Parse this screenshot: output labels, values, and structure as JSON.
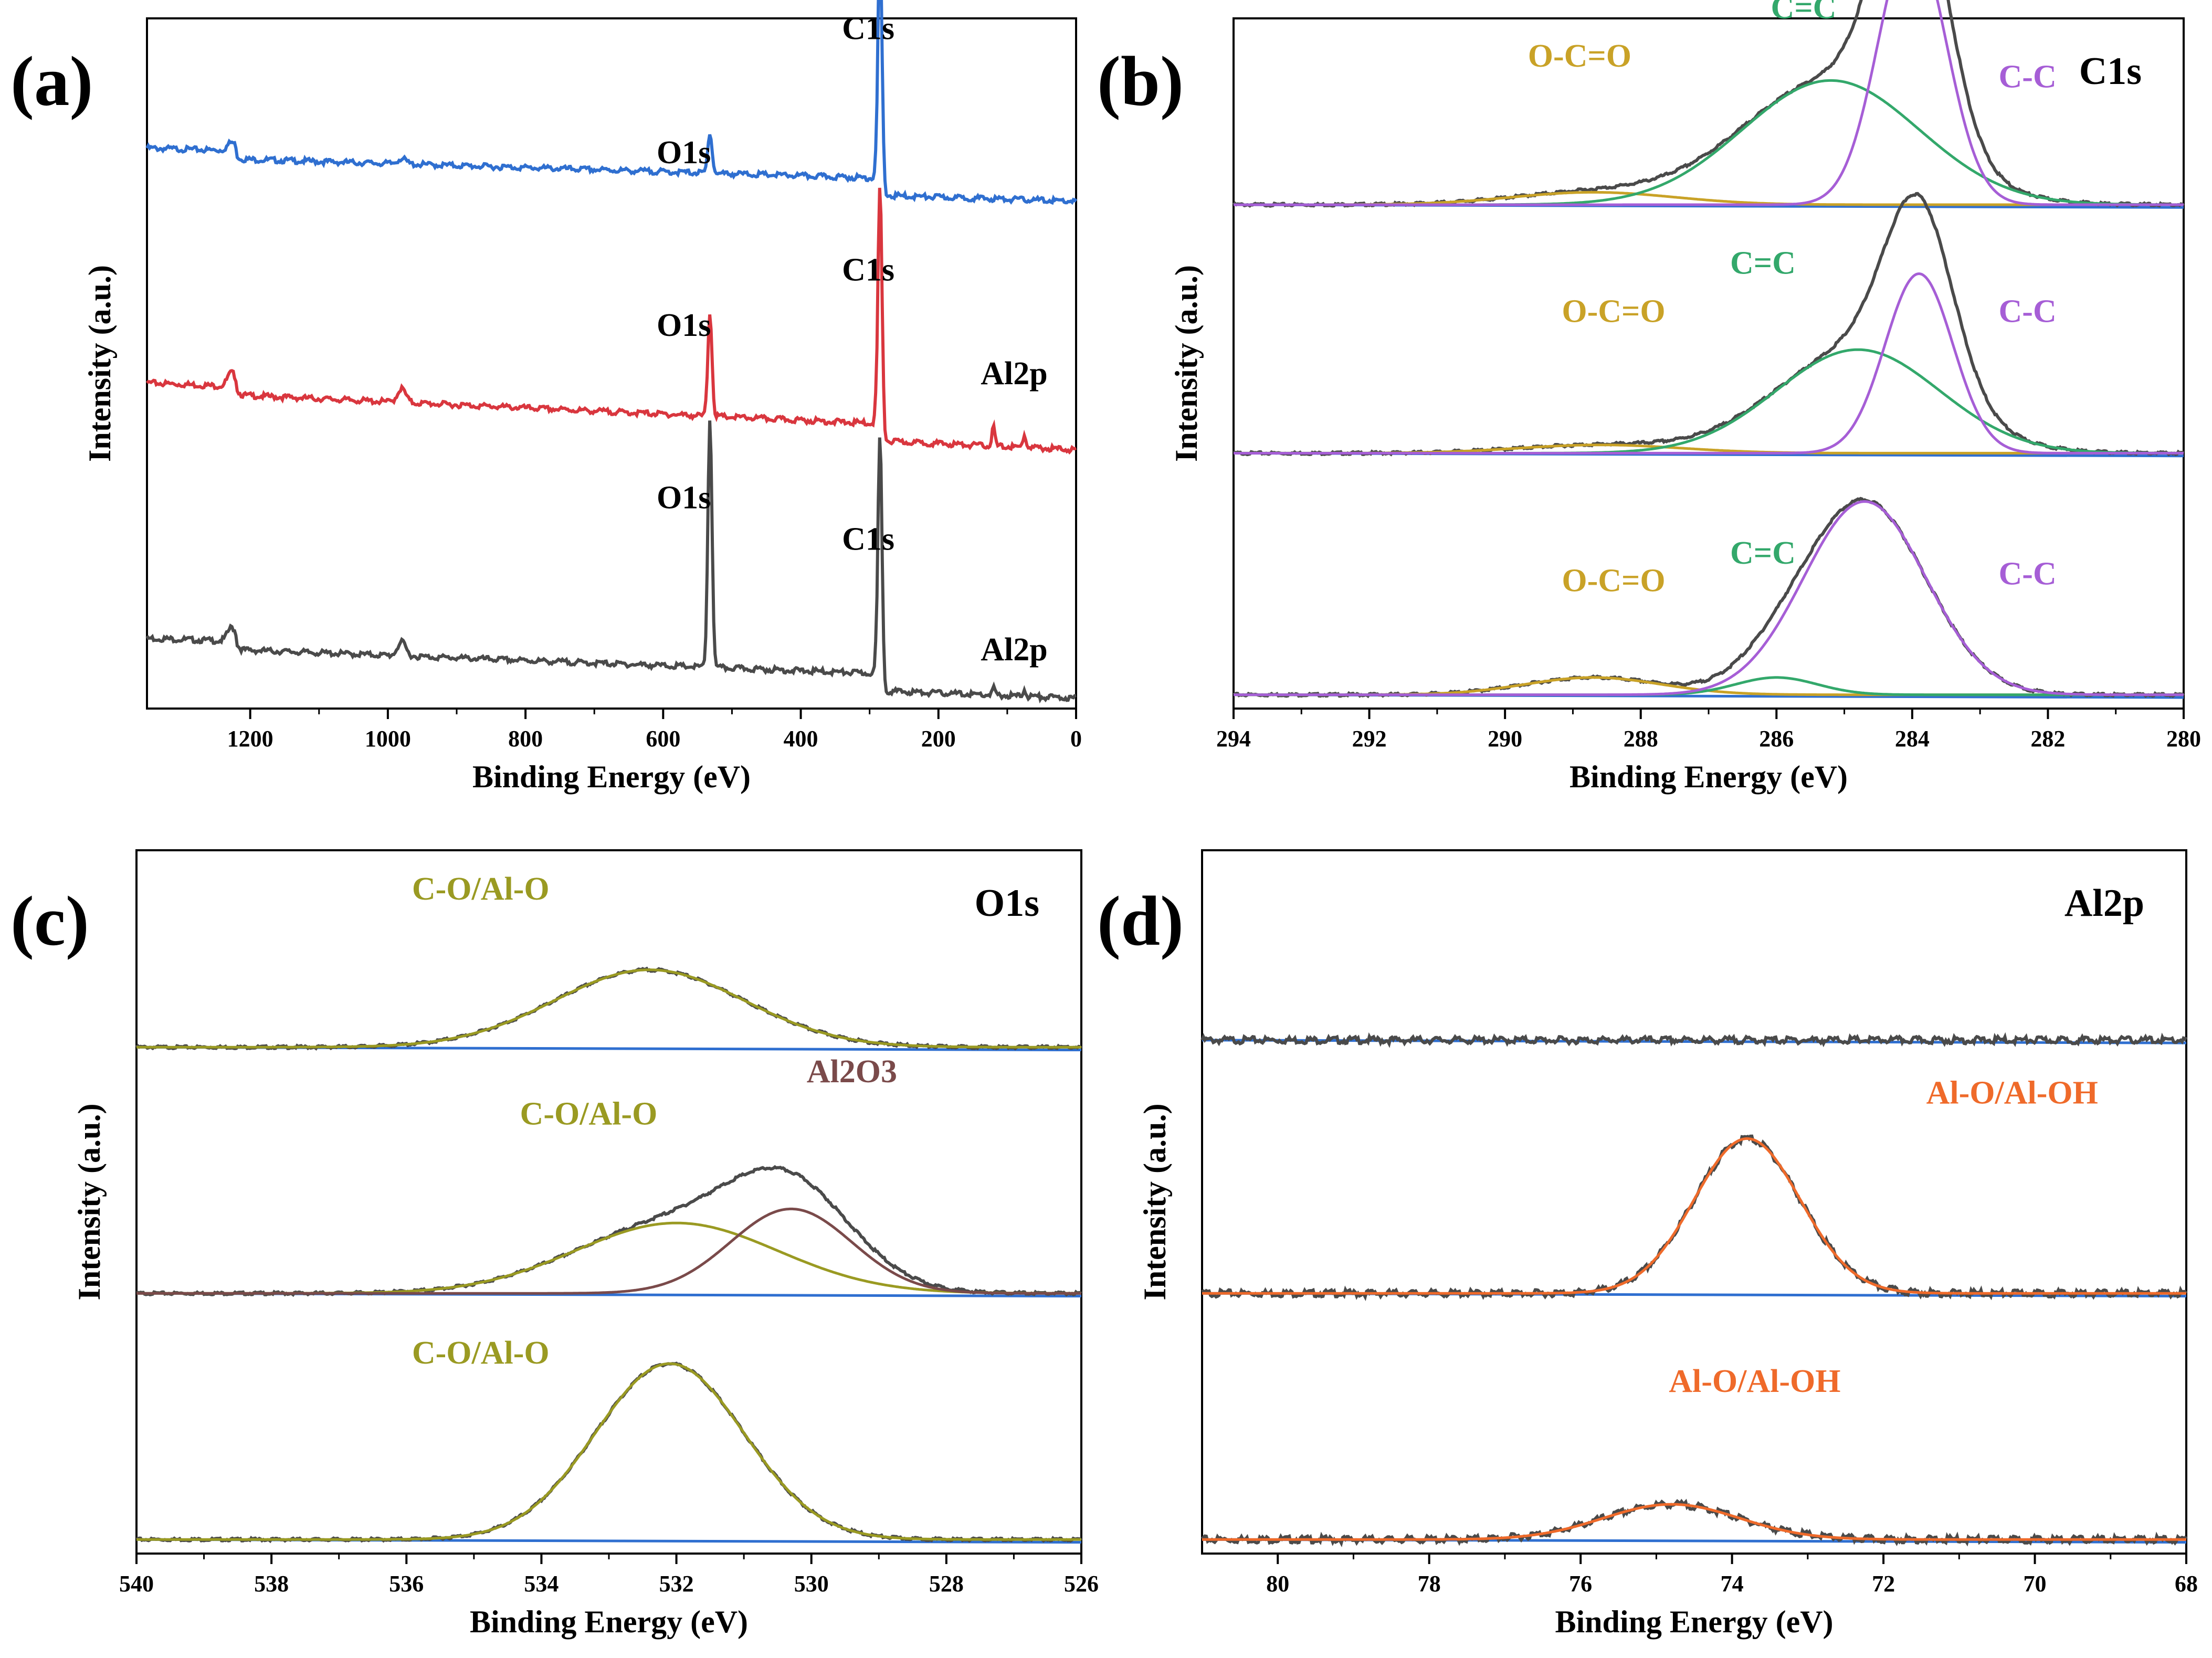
{
  "figure": {
    "colors": {
      "gray": "#4a4a4a",
      "blue": "#2f6fd0",
      "red": "#d9363e",
      "baseline": "#2f6fd0",
      "gold": "#c9a227",
      "green": "#33a86b",
      "purple": "#a65ed6",
      "olive": "#9a9a22",
      "brown": "#7a4a4a",
      "orange": "#ef6a2a"
    }
  },
  "chart_data": [
    {
      "id": "a",
      "panel_label": "(a)",
      "type": "line",
      "title": "",
      "xlabel": "Binding Energy (eV)",
      "ylabel": "Intensity (a.u.)",
      "xlim": [
        1350,
        0
      ],
      "xticks": [
        "1200",
        "1000",
        "800",
        "600",
        "400",
        "200",
        "0"
      ],
      "xtick_values": [
        1200,
        1000,
        800,
        600,
        400,
        200,
        0
      ],
      "series": [
        {
          "name": "top",
          "color": "blue",
          "offset": 0.76,
          "peaks": [
            [
              1227,
              0.012,
              6
            ],
            [
              980,
              0.008,
              6
            ],
            [
              532,
              0.06,
              3
            ],
            [
              285,
              0.37,
              3
            ]
          ],
          "slope": 0.04
        },
        {
          "name": "middle",
          "color": "red",
          "offset": 0.4,
          "peaks": [
            [
              1227,
              0.02,
              6
            ],
            [
              980,
              0.02,
              6
            ],
            [
              532,
              0.15,
              3
            ],
            [
              285,
              0.37,
              3
            ],
            [
              120,
              0.03,
              2
            ],
            [
              75,
              0.02,
              2
            ]
          ],
          "slope": 0.06
        },
        {
          "name": "bottom",
          "color": "gray",
          "offset": 0.04,
          "peaks": [
            [
              1227,
              0.02,
              6
            ],
            [
              980,
              0.02,
              6
            ],
            [
              532,
              0.36,
              3
            ],
            [
              285,
              0.37,
              3
            ],
            [
              120,
              0.01,
              2
            ],
            [
              75,
              0.01,
              2
            ]
          ],
          "slope": 0.05
        }
      ],
      "annotations": [
        {
          "text": "C1s",
          "x": 302,
          "y": 0.97,
          "color": "black"
        },
        {
          "text": "O1s",
          "x": 570,
          "y": 0.79,
          "color": "black"
        },
        {
          "text": "O1s",
          "x": 570,
          "y": 0.54,
          "color": "black"
        },
        {
          "text": "C1s",
          "x": 302,
          "y": 0.62,
          "color": "black"
        },
        {
          "text": "Al2p",
          "x": 90,
          "y": 0.47,
          "color": "black"
        },
        {
          "text": "O1s",
          "x": 570,
          "y": 0.29,
          "color": "black"
        },
        {
          "text": "C1s",
          "x": 302,
          "y": 0.23,
          "color": "black"
        },
        {
          "text": "Al2p",
          "x": 90,
          "y": 0.07,
          "color": "black"
        }
      ]
    },
    {
      "id": "b",
      "panel_label": "(b)",
      "corner_label": "C1s",
      "type": "line",
      "xlabel": "Binding Energy (eV)",
      "ylabel": "Intensity (a.u.)",
      "xlim": [
        294,
        280
      ],
      "xticks": [
        "294",
        "292",
        "290",
        "288",
        "286",
        "284",
        "282",
        "280"
      ],
      "xtick_values": [
        294,
        292,
        290,
        288,
        286,
        284,
        282,
        280
      ],
      "stacks": [
        {
          "offset": 0.73,
          "components": [
            {
              "name": "O-C=O",
              "color": "gold",
              "center": 288.7,
              "height": 0.018,
              "width": 1.2
            },
            {
              "name": "C=C",
              "color": "green",
              "center": 285.2,
              "height": 0.18,
              "width": 1.3
            },
            {
              "name": "C-C",
              "color": "purple",
              "center": 284.0,
              "height": 0.39,
              "width": 0.5
            }
          ]
        },
        {
          "offset": 0.37,
          "components": [
            {
              "name": "O-C=O",
              "color": "gold",
              "center": 288.6,
              "height": 0.012,
              "width": 1.2
            },
            {
              "name": "C=C",
              "color": "green",
              "center": 284.8,
              "height": 0.15,
              "width": 1.2
            },
            {
              "name": "C-C",
              "color": "purple",
              "center": 283.9,
              "height": 0.26,
              "width": 0.5
            }
          ]
        },
        {
          "offset": 0.02,
          "components": [
            {
              "name": "O-C=O",
              "color": "gold",
              "center": 288.7,
              "height": 0.025,
              "width": 1.0
            },
            {
              "name": "C=C",
              "color": "green",
              "center": 286.0,
              "height": 0.025,
              "width": 0.6
            },
            {
              "name": "C-C",
              "color": "purple",
              "center": 284.7,
              "height": 0.28,
              "width": 0.9
            }
          ]
        }
      ],
      "annotations": [
        {
          "text": "O-C=O",
          "x": 288.9,
          "y": 0.93,
          "color": "gold"
        },
        {
          "text": "C=C",
          "x": 285.6,
          "y": 1.0,
          "color": "green"
        },
        {
          "text": "C-C",
          "x": 282.3,
          "y": 0.9,
          "color": "purple"
        },
        {
          "text": "O-C=O",
          "x": 288.4,
          "y": 0.56,
          "color": "gold"
        },
        {
          "text": "C=C",
          "x": 286.2,
          "y": 0.63,
          "color": "green"
        },
        {
          "text": "C-C",
          "x": 282.3,
          "y": 0.56,
          "color": "purple"
        },
        {
          "text": "O-C=O",
          "x": 288.4,
          "y": 0.17,
          "color": "gold"
        },
        {
          "text": "C=C",
          "x": 286.2,
          "y": 0.21,
          "color": "green"
        },
        {
          "text": "C-C",
          "x": 282.3,
          "y": 0.18,
          "color": "purple"
        }
      ]
    },
    {
      "id": "c",
      "panel_label": "(c)",
      "corner_label": "O1s",
      "type": "line",
      "xlabel": "Binding Energy (eV)",
      "ylabel": "Intensity (a.u.)",
      "xlim": [
        540,
        526
      ],
      "xticks": [
        "540",
        "538",
        "536",
        "534",
        "532",
        "530",
        "528",
        "526"
      ],
      "xtick_values": [
        540,
        538,
        536,
        534,
        532,
        530,
        528,
        526
      ],
      "stacks": [
        {
          "offset": 0.72,
          "components": [
            {
              "name": "C-O/Al-O",
              "color": "olive",
              "center": 532.4,
              "height": 0.11,
              "width": 1.4
            }
          ]
        },
        {
          "offset": 0.37,
          "components": [
            {
              "name": "C-O/Al-O",
              "color": "olive",
              "center": 532.0,
              "height": 0.1,
              "width": 1.5
            },
            {
              "name": "Al2O3",
              "color": "brown",
              "center": 530.3,
              "height": 0.12,
              "width": 0.9
            }
          ]
        },
        {
          "offset": 0.02,
          "components": [
            {
              "name": "C-O/Al-O",
              "color": "olive",
              "center": 532.1,
              "height": 0.25,
              "width": 1.1
            }
          ]
        }
      ],
      "annotations": [
        {
          "text": "C-O/Al-O",
          "x": 534.9,
          "y": 0.93,
          "color": "olive"
        },
        {
          "text": "C-O/Al-O",
          "x": 533.3,
          "y": 0.61,
          "color": "olive"
        },
        {
          "text": "Al2O3",
          "x": 529.4,
          "y": 0.67,
          "color": "brown"
        },
        {
          "text": "C-O/Al-O",
          "x": 534.9,
          "y": 0.27,
          "color": "olive"
        }
      ]
    },
    {
      "id": "d",
      "panel_label": "(d)",
      "corner_label": "Al2p",
      "type": "line",
      "xlabel": "Binding Energy (eV)",
      "ylabel": "Intensity (a.u.)",
      "xlim": [
        81,
        68
      ],
      "xticks": [
        "80",
        "78",
        "76",
        "74",
        "72",
        "70",
        "68"
      ],
      "xtick_values": [
        80,
        78,
        76,
        74,
        72,
        70,
        68
      ],
      "stacks": [
        {
          "offset": 0.73,
          "components": []
        },
        {
          "offset": 0.37,
          "components": [
            {
              "name": "Al-O/Al-OH",
              "color": "orange",
              "center": 73.8,
              "height": 0.22,
              "width": 0.7
            }
          ]
        },
        {
          "offset": 0.02,
          "components": [
            {
              "name": "Al-O/Al-OH",
              "color": "orange",
              "center": 74.8,
              "height": 0.05,
              "width": 0.9
            }
          ]
        }
      ],
      "annotations": [
        {
          "text": "Al-O/Al-OH",
          "x": 70.3,
          "y": 0.64,
          "color": "orange"
        },
        {
          "text": "Al-O/Al-OH",
          "x": 73.7,
          "y": 0.23,
          "color": "orange"
        }
      ]
    }
  ]
}
